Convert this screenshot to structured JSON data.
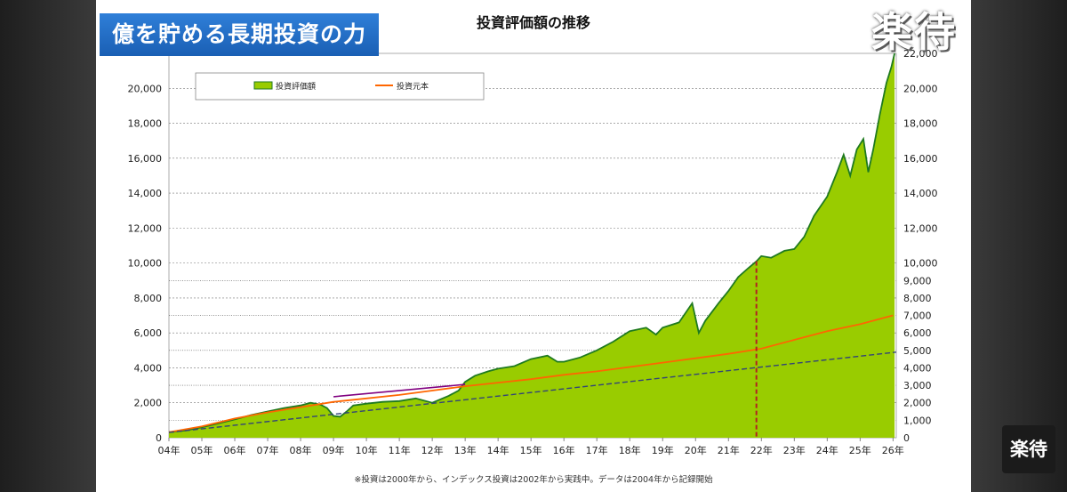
{
  "overlay": {
    "banner_title": "億を貯める長期投資の力",
    "watermark_large": "楽待",
    "watermark_small": "楽待"
  },
  "chart_data": {
    "type": "area",
    "title": "投資評価額の推移",
    "footnote": "※投資は2000年から、インデックス投資は2002年から実践中。データは2004年から記録開始",
    "legend": {
      "placement": "top-left",
      "entries": [
        "投資評価額",
        "投資元本"
      ]
    },
    "colors": {
      "area_fill": "#99cc00",
      "area_line": "#1f7a1f",
      "principal": "#ff6600",
      "trend": "#334477",
      "trend_early": "#800080",
      "marker": "#b22222",
      "plot_bg": "#ffffff"
    },
    "x_ticks": [
      "04年",
      "05年",
      "06年",
      "07年",
      "08年",
      "09年",
      "10年",
      "11年",
      "12年",
      "13年",
      "14年",
      "15年",
      "16年",
      "17年",
      "18年",
      "19年",
      "20年",
      "21年",
      "22年",
      "23年",
      "24年",
      "25年",
      "26年"
    ],
    "x_range": [
      2004,
      2026.1
    ],
    "y_left": {
      "ticks": [
        "0",
        "2,000",
        "4,000",
        "6,000",
        "8,000",
        "10,000",
        "12,000",
        "14,000",
        "16,000",
        "18,000",
        "20,000"
      ],
      "range": [
        0,
        22000
      ]
    },
    "y_right": {
      "ticks": [
        "0",
        "1,000",
        "2,000",
        "3,000",
        "4,000",
        "5,000",
        "6,000",
        "7,000",
        "8,000",
        "9,000",
        "10,000",
        "12,000",
        "14,000",
        "16,000",
        "18,000",
        "20,000",
        "22,000"
      ]
    },
    "extra_gridlines": [
      1000,
      3000,
      5000,
      7000,
      9000
    ],
    "marker_x": 2021.85,
    "series": [
      {
        "name": "投資評価額",
        "kind": "area",
        "points": [
          [
            2004,
            320
          ],
          [
            2004.5,
            420
          ],
          [
            2005,
            600
          ],
          [
            2005.5,
            820
          ],
          [
            2006,
            1050
          ],
          [
            2006.5,
            1300
          ],
          [
            2007,
            1500
          ],
          [
            2007.5,
            1700
          ],
          [
            2008,
            1850
          ],
          [
            2008.3,
            2000
          ],
          [
            2008.6,
            1900
          ],
          [
            2008.8,
            1700
          ],
          [
            2009,
            1250
          ],
          [
            2009.2,
            1200
          ],
          [
            2009.4,
            1500
          ],
          [
            2009.6,
            1850
          ],
          [
            2010,
            1950
          ],
          [
            2010.5,
            2050
          ],
          [
            2011,
            2100
          ],
          [
            2011.5,
            2250
          ],
          [
            2012,
            2000
          ],
          [
            2012.5,
            2400
          ],
          [
            2012.8,
            2700
          ],
          [
            2013,
            3200
          ],
          [
            2013.3,
            3550
          ],
          [
            2013.7,
            3800
          ],
          [
            2014,
            3950
          ],
          [
            2014.5,
            4100
          ],
          [
            2015,
            4500
          ],
          [
            2015.5,
            4700
          ],
          [
            2015.8,
            4350
          ],
          [
            2016,
            4350
          ],
          [
            2016.5,
            4600
          ],
          [
            2017,
            5000
          ],
          [
            2017.5,
            5500
          ],
          [
            2018,
            6100
          ],
          [
            2018.5,
            6300
          ],
          [
            2018.8,
            5900
          ],
          [
            2019,
            6300
          ],
          [
            2019.5,
            6600
          ],
          [
            2019.9,
            7700
          ],
          [
            2020.1,
            6000
          ],
          [
            2020.3,
            6700
          ],
          [
            2020.7,
            7700
          ],
          [
            2021,
            8400
          ],
          [
            2021.3,
            9200
          ],
          [
            2021.6,
            9700
          ],
          [
            2021.85,
            10100
          ],
          [
            2022,
            10400
          ],
          [
            2022.3,
            10300
          ],
          [
            2022.7,
            10700
          ],
          [
            2023,
            10800
          ],
          [
            2023.3,
            11500
          ],
          [
            2023.6,
            12700
          ],
          [
            2024,
            13800
          ],
          [
            2024.3,
            15200
          ],
          [
            2024.5,
            16200
          ],
          [
            2024.7,
            15000
          ],
          [
            2024.9,
            16500
          ],
          [
            2025.1,
            17100
          ],
          [
            2025.25,
            15200
          ],
          [
            2025.4,
            16500
          ],
          [
            2025.6,
            18500
          ],
          [
            2025.8,
            20300
          ],
          [
            2025.95,
            21200
          ],
          [
            2026.05,
            22000
          ]
        ]
      },
      {
        "name": "投資元本",
        "kind": "line",
        "points": [
          [
            2004,
            320
          ],
          [
            2005,
            650
          ],
          [
            2006,
            1100
          ],
          [
            2007,
            1450
          ],
          [
            2008,
            1750
          ],
          [
            2008.5,
            1900
          ],
          [
            2009,
            2050
          ],
          [
            2010,
            2250
          ],
          [
            2011,
            2450
          ],
          [
            2012,
            2700
          ],
          [
            2013,
            2950
          ],
          [
            2014,
            3150
          ],
          [
            2015,
            3350
          ],
          [
            2016,
            3600
          ],
          [
            2017,
            3800
          ],
          [
            2018,
            4050
          ],
          [
            2019,
            4300
          ],
          [
            2020,
            4550
          ],
          [
            2021,
            4800
          ],
          [
            2022,
            5100
          ],
          [
            2023,
            5600
          ],
          [
            2024,
            6100
          ],
          [
            2025,
            6500
          ],
          [
            2026,
            7000
          ]
        ]
      },
      {
        "kind": "trend_early",
        "points": [
          [
            2009,
            2350
          ],
          [
            2013,
            3050
          ]
        ]
      },
      {
        "kind": "trend",
        "points": [
          [
            2004,
            300
          ],
          [
            2026.1,
            4900
          ]
        ]
      }
    ]
  }
}
